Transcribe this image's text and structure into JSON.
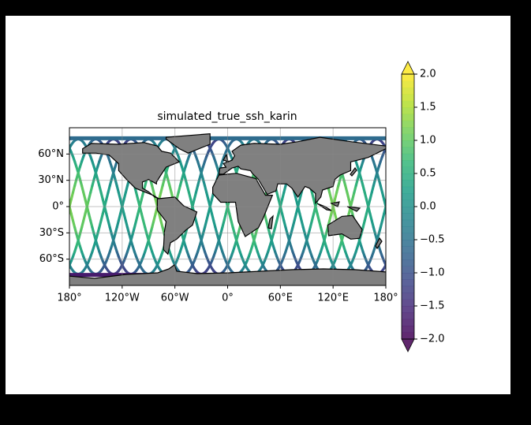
{
  "chart_data": {
    "type": "map",
    "title": "simulated_true_ssh_karin",
    "xlim": [
      -180,
      180
    ],
    "ylim": [
      -90,
      90
    ],
    "xticks": [
      {
        "value": -180,
        "label": "180°"
      },
      {
        "value": -120,
        "label": "120°W"
      },
      {
        "value": -60,
        "label": "60°W"
      },
      {
        "value": 0,
        "label": "0°"
      },
      {
        "value": 60,
        "label": "60°E"
      },
      {
        "value": 120,
        "label": "120°E"
      },
      {
        "value": 180,
        "label": "180°"
      }
    ],
    "yticks": [
      {
        "value": 60,
        "label": "60°N"
      },
      {
        "value": 30,
        "label": "30°N"
      },
      {
        "value": 0,
        "label": "0°"
      },
      {
        "value": -30,
        "label": "30°S"
      },
      {
        "value": -60,
        "label": "60°S"
      }
    ],
    "grid": true,
    "colorbar": {
      "clim": [
        -2,
        2
      ],
      "colormap": "viridis",
      "extend": "both",
      "ticks": [
        {
          "value": 2,
          "label": "2.0"
        },
        {
          "value": 1.5,
          "label": "1.5"
        },
        {
          "value": 1,
          "label": "1.0"
        },
        {
          "value": 0.5,
          "label": "0.5"
        },
        {
          "value": 0,
          "label": "0.0"
        },
        {
          "value": -0.5,
          "label": "−0.5"
        },
        {
          "value": -1,
          "label": "−1.0"
        },
        {
          "value": -1.5,
          "label": "−1.5"
        },
        {
          "value": -2,
          "label": "−2.0"
        }
      ]
    }
  }
}
